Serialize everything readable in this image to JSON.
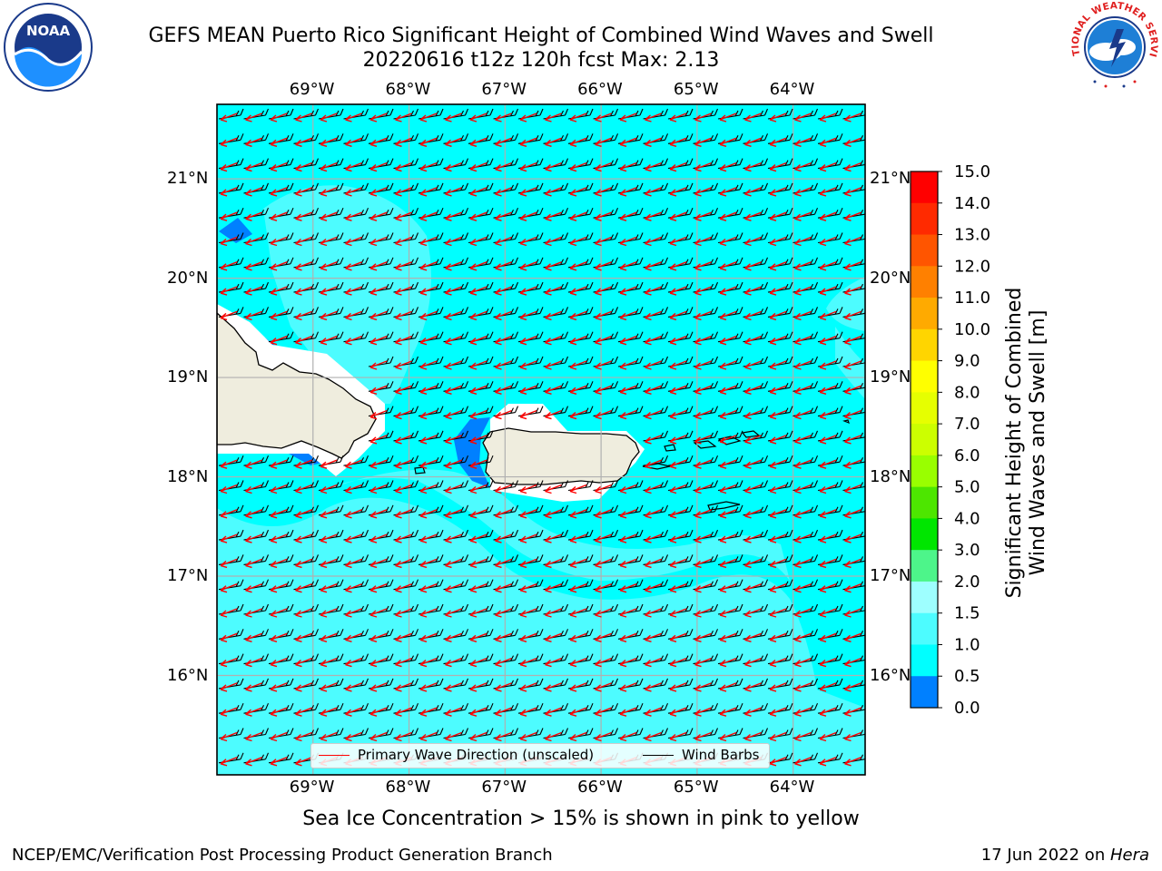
{
  "header": {
    "title_line1": "GEFS MEAN Puerto Rico Significant Height of Combined Wind Waves and Swell",
    "title_line2": "20220616 t12z 120h fcst   Max: 2.13"
  },
  "logos": {
    "left": {
      "name": "noaa-logo",
      "text": "NOAA",
      "ring_text": "NATIONAL OCEANIC AND ATMOSPHERIC ADMINISTRATION · U.S. DEPARTMENT OF COMMERCE"
    },
    "right": {
      "name": "nws-logo",
      "ring_text": "NATIONAL WEATHER SERVICE"
    }
  },
  "map": {
    "lon_ticks": [
      "69°W",
      "68°W",
      "67°W",
      "66°W",
      "65°W",
      "64°W"
    ],
    "lat_ticks": [
      "21°N",
      "20°N",
      "19°N",
      "18°N",
      "17°N",
      "16°N"
    ],
    "lon_range": [
      -70.0,
      -63.25
    ],
    "lat_range": [
      15.0,
      21.75
    ],
    "colors": {
      "ocean_base": "#00ffff",
      "ocean_swell": "#4dfcff",
      "ocean_calm": "#0080ff",
      "land": "#efedde",
      "coast": "#000000",
      "arrows": "#ff0000",
      "barbs": "#000000",
      "grid": "#b0b0b0"
    }
  },
  "legend": {
    "primary": "Primary Wave Direction (unscaled)",
    "barbs": "Wind Barbs"
  },
  "colorbar": {
    "label": "Significant Height of Combined Wind Waves and Swell [m]",
    "label_line1": "Significant Height of Combined",
    "label_line2": "Wind Waves and Swell [m]",
    "ticks": [
      "15.0",
      "14.0",
      "13.0",
      "12.0",
      "11.0",
      "10.0",
      "9.0",
      "8.0",
      "7.0",
      "6.0",
      "5.0",
      "4.0",
      "3.0",
      "2.0",
      "1.5",
      "1.0",
      "0.5",
      "0.0"
    ],
    "colors": [
      "#ff0000",
      "#ff2a00",
      "#ff5500",
      "#ff8000",
      "#ffaa00",
      "#ffd500",
      "#ffff00",
      "#e6ff00",
      "#ccff00",
      "#99ff00",
      "#4de600",
      "#00e600",
      "#4df58a",
      "#9effff",
      "#4dfcff",
      "#00ffff",
      "#0080ff",
      "#0000ff"
    ]
  },
  "note": "Sea Ice Concentration > 15% is shown in pink to yellow",
  "footer": {
    "left": "NCEP/EMC/Verification Post Processing Product Generation Branch",
    "date": "17 Jun 2022 on ",
    "host": "Hera"
  }
}
